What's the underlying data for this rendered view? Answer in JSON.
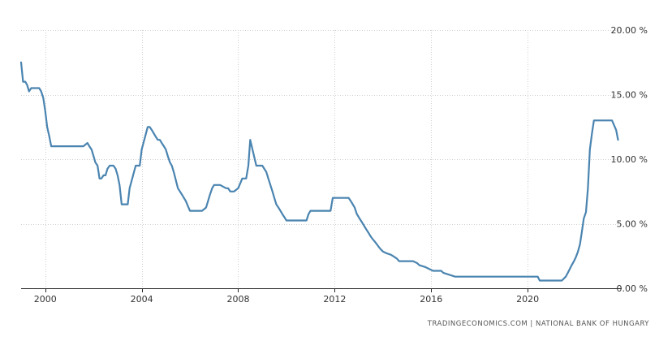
{
  "source_text": "TRADINGECONOMICS.COM  |  NATIONAL BANK OF HUNGARY",
  "chart_data": {
    "type": "line",
    "title": "",
    "xlabel": "",
    "ylabel": "",
    "x_tick_labels": [
      "2000",
      "2004",
      "2008",
      "2012",
      "2016",
      "2020"
    ],
    "y_tick_labels": [
      "0.00 %",
      "5.00 %",
      "10.00 %",
      "15.00 %",
      "20.00 %"
    ],
    "y_ticks": [
      0,
      5,
      10,
      15,
      20
    ],
    "ylim": [
      0,
      20
    ],
    "xlim": [
      1999.0,
      2023.9
    ],
    "grid": true,
    "y_axis_position": "right",
    "line_color": "#4a84b0",
    "series": [
      {
        "x": [
          1999.0,
          1999.08,
          1999.17,
          1999.25,
          1999.33,
          1999.42,
          1999.5,
          1999.58,
          1999.67,
          1999.75,
          1999.83,
          1999.92,
          2000.0,
          2000.08,
          2000.17,
          2000.25,
          2000.33,
          2000.5,
          2001.0,
          2001.25,
          2001.5,
          2001.58,
          2001.75,
          2001.83,
          2001.92,
          2002.0,
          2002.08,
          2002.17,
          2002.25,
          2002.33,
          2002.42,
          2002.5,
          2002.58,
          2002.67,
          2002.75,
          2002.83,
          2002.92,
          2003.0,
          2003.08,
          2003.17,
          2003.33,
          2003.42,
          2003.5,
          2003.75,
          2003.83,
          2003.92,
          2004.0,
          2004.25,
          2004.33,
          2004.42,
          2004.58,
          2004.67,
          2004.75,
          2004.83,
          2004.92,
          2005.0,
          2005.08,
          2005.17,
          2005.25,
          2005.33,
          2005.5,
          2005.67,
          2005.83,
          2006.0,
          2006.5,
          2006.67,
          2006.75,
          2006.83,
          2006.92,
          2007.0,
          2007.25,
          2007.5,
          2007.58,
          2007.67,
          2007.83,
          2008.0,
          2008.17,
          2008.25,
          2008.33,
          2008.42,
          2008.5,
          2008.75,
          2008.83,
          2008.92,
          2009.0,
          2009.17,
          2009.25,
          2009.42,
          2009.5,
          2009.58,
          2009.67,
          2009.75,
          2009.83,
          2009.92,
          2010.0,
          2010.17,
          2010.33,
          2010.58,
          2010.83,
          2010.92,
          2011.0,
          2011.5,
          2011.83,
          2011.92,
          2012.0,
          2012.5,
          2012.58,
          2012.67,
          2012.75,
          2012.83,
          2012.92,
          2013.0,
          2013.17,
          2013.25,
          2013.33,
          2013.42,
          2013.5,
          2013.58,
          2013.67,
          2013.75,
          2013.83,
          2013.92,
          2014.0,
          2014.17,
          2014.33,
          2014.42,
          2014.58,
          2014.67,
          2015.0,
          2015.17,
          2015.25,
          2015.42,
          2015.5,
          2015.75,
          2016.08,
          2016.25,
          2016.42,
          2016.5,
          2017.0,
          2020.0,
          2020.25,
          2020.42,
          2020.5,
          2021.0,
          2021.17,
          2021.33,
          2021.42,
          2021.58,
          2021.67,
          2021.75,
          2021.83,
          2021.92,
          2022.0,
          2022.08,
          2022.17,
          2022.25,
          2022.33,
          2022.42,
          2022.5,
          2022.58,
          2022.67,
          2022.75,
          2022.83,
          2023.0,
          2023.5,
          2023.67,
          2023.75
        ],
        "y": [
          17.5,
          16.0,
          16.0,
          15.75,
          15.25,
          15.5,
          15.5,
          15.5,
          15.5,
          15.5,
          15.25,
          14.75,
          13.75,
          12.5,
          11.75,
          11.0,
          11.0,
          11.0,
          11.0,
          11.0,
          11.0,
          11.0,
          11.25,
          11.0,
          10.75,
          10.25,
          9.75,
          9.5,
          8.5,
          8.5,
          8.75,
          8.75,
          9.25,
          9.5,
          9.5,
          9.5,
          9.25,
          8.75,
          8.0,
          6.5,
          6.5,
          6.5,
          7.75,
          9.5,
          9.5,
          9.5,
          10.75,
          12.5,
          12.5,
          12.25,
          11.75,
          11.5,
          11.5,
          11.25,
          11.0,
          10.75,
          10.25,
          9.75,
          9.5,
          9.0,
          7.75,
          7.25,
          6.75,
          6.0,
          6.0,
          6.25,
          6.75,
          7.25,
          7.75,
          8.0,
          8.0,
          7.75,
          7.75,
          7.5,
          7.5,
          7.75,
          8.5,
          8.5,
          8.5,
          9.5,
          11.5,
          9.5,
          9.5,
          9.5,
          9.5,
          9.0,
          8.5,
          7.5,
          7.0,
          6.5,
          6.25,
          6.0,
          5.75,
          5.5,
          5.25,
          5.25,
          5.25,
          5.25,
          5.25,
          5.75,
          6.0,
          6.0,
          6.0,
          7.0,
          7.0,
          7.0,
          7.0,
          6.75,
          6.5,
          6.25,
          5.75,
          5.5,
          5.0,
          4.75,
          4.5,
          4.25,
          4.0,
          3.8,
          3.6,
          3.4,
          3.2,
          3.0,
          2.85,
          2.7,
          2.6,
          2.5,
          2.3,
          2.1,
          2.1,
          2.1,
          2.1,
          1.95,
          1.8,
          1.65,
          1.35,
          1.35,
          1.35,
          1.2,
          0.9,
          0.9,
          0.9,
          0.9,
          0.6,
          0.6,
          0.6,
          0.6,
          0.6,
          0.9,
          1.2,
          1.5,
          1.8,
          2.1,
          2.4,
          2.8,
          3.4,
          4.4,
          5.4,
          5.9,
          7.75,
          10.75,
          12.0,
          13.0,
          13.0,
          13.0,
          13.0,
          12.25,
          11.5
        ]
      }
    ]
  }
}
